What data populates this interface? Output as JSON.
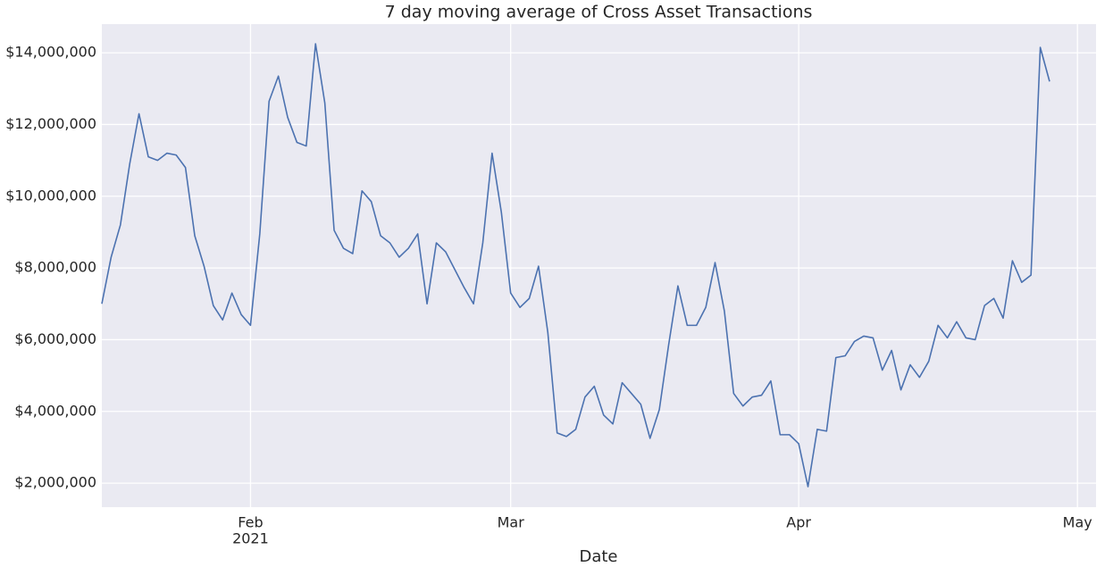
{
  "chart_data": {
    "type": "line",
    "title": "7 day moving average of Cross Asset Transactions",
    "xlabel": "Date",
    "x": [
      "2021-01-16",
      "2021-01-17",
      "2021-01-18",
      "2021-01-19",
      "2021-01-20",
      "2021-01-21",
      "2021-01-22",
      "2021-01-23",
      "2021-01-24",
      "2021-01-25",
      "2021-01-26",
      "2021-01-27",
      "2021-01-28",
      "2021-01-29",
      "2021-01-30",
      "2021-01-31",
      "2021-02-01",
      "2021-02-02",
      "2021-02-03",
      "2021-02-04",
      "2021-02-05",
      "2021-02-06",
      "2021-02-07",
      "2021-02-08",
      "2021-02-09",
      "2021-02-10",
      "2021-02-11",
      "2021-02-12",
      "2021-02-13",
      "2021-02-14",
      "2021-02-15",
      "2021-02-16",
      "2021-02-17",
      "2021-02-18",
      "2021-02-19",
      "2021-02-20",
      "2021-02-21",
      "2021-02-22",
      "2021-02-23",
      "2021-02-24",
      "2021-02-25",
      "2021-02-26",
      "2021-02-27",
      "2021-02-28",
      "2021-03-01",
      "2021-03-02",
      "2021-03-03",
      "2021-03-04",
      "2021-03-05",
      "2021-03-06",
      "2021-03-07",
      "2021-03-08",
      "2021-03-09",
      "2021-03-10",
      "2021-03-11",
      "2021-03-12",
      "2021-03-13",
      "2021-03-14",
      "2021-03-15",
      "2021-03-16",
      "2021-03-17",
      "2021-03-18",
      "2021-03-19",
      "2021-03-20",
      "2021-03-21",
      "2021-03-22",
      "2021-03-23",
      "2021-03-24",
      "2021-03-25",
      "2021-03-26",
      "2021-03-27",
      "2021-03-28",
      "2021-03-29",
      "2021-03-30",
      "2021-03-31",
      "2021-04-01",
      "2021-04-02",
      "2021-04-03",
      "2021-04-04",
      "2021-04-05",
      "2021-04-06",
      "2021-04-07",
      "2021-04-08",
      "2021-04-09",
      "2021-04-10",
      "2021-04-11",
      "2021-04-12",
      "2021-04-13",
      "2021-04-14",
      "2021-04-15",
      "2021-04-16",
      "2021-04-17",
      "2021-04-18",
      "2021-04-19",
      "2021-04-20",
      "2021-04-21",
      "2021-04-22",
      "2021-04-23",
      "2021-04-24",
      "2021-04-25",
      "2021-04-26",
      "2021-04-27",
      "2021-04-28"
    ],
    "series": [
      {
        "name": "Cross Asset Transactions",
        "color": "#4c72b0",
        "values": [
          7000000,
          8300000,
          9200000,
          10900000,
          12300000,
          11100000,
          11000000,
          11200000,
          11150000,
          10800000,
          8900000,
          8050000,
          6950000,
          6550000,
          7300000,
          6700000,
          6400000,
          8950000,
          12650000,
          13350000,
          12200000,
          11500000,
          11400000,
          14250000,
          12600000,
          9050000,
          8550000,
          8400000,
          10150000,
          9850000,
          8900000,
          8700000,
          8300000,
          8550000,
          8950000,
          7000000,
          8700000,
          8450000,
          7950000,
          7450000,
          7000000,
          8700000,
          11200000,
          9550000,
          7300000,
          6900000,
          7150000,
          8050000,
          6200000,
          3400000,
          3300000,
          3500000,
          4400000,
          4700000,
          3900000,
          3650000,
          4800000,
          4500000,
          4200000,
          3250000,
          4050000,
          5850000,
          7500000,
          6400000,
          6400000,
          6900000,
          8150000,
          6800000,
          4500000,
          4150000,
          4400000,
          4450000,
          4850000,
          3350000,
          3350000,
          3100000,
          1900000,
          3500000,
          3450000,
          5500000,
          5550000,
          5950000,
          6100000,
          6050000,
          5150000,
          5700000,
          4600000,
          5300000,
          4950000,
          5400000,
          6400000,
          6050000,
          6500000,
          6050000,
          6000000,
          6950000,
          7150000,
          6600000,
          8200000,
          7600000,
          7800000,
          14150000,
          13200000
        ]
      }
    ],
    "xlim": [
      "2021-01-16",
      "2021-05-03"
    ],
    "xticks": [
      {
        "value": "2021-02-01",
        "label": "Feb",
        "year": "2021"
      },
      {
        "value": "2021-03-01",
        "label": "Mar"
      },
      {
        "value": "2021-04-01",
        "label": "Apr"
      },
      {
        "value": "2021-05-01",
        "label": "May"
      }
    ],
    "ylim": [
      1330000,
      14800000
    ],
    "yticks": [
      {
        "value": 2000000,
        "label": "$2,000,000"
      },
      {
        "value": 4000000,
        "label": "$4,000,000"
      },
      {
        "value": 6000000,
        "label": "$6,000,000"
      },
      {
        "value": 8000000,
        "label": "$8,000,000"
      },
      {
        "value": 10000000,
        "label": "$10,000,000"
      },
      {
        "value": 12000000,
        "label": "$12,000,000"
      },
      {
        "value": 14000000,
        "label": "$14,000,000"
      }
    ],
    "grid": true
  }
}
